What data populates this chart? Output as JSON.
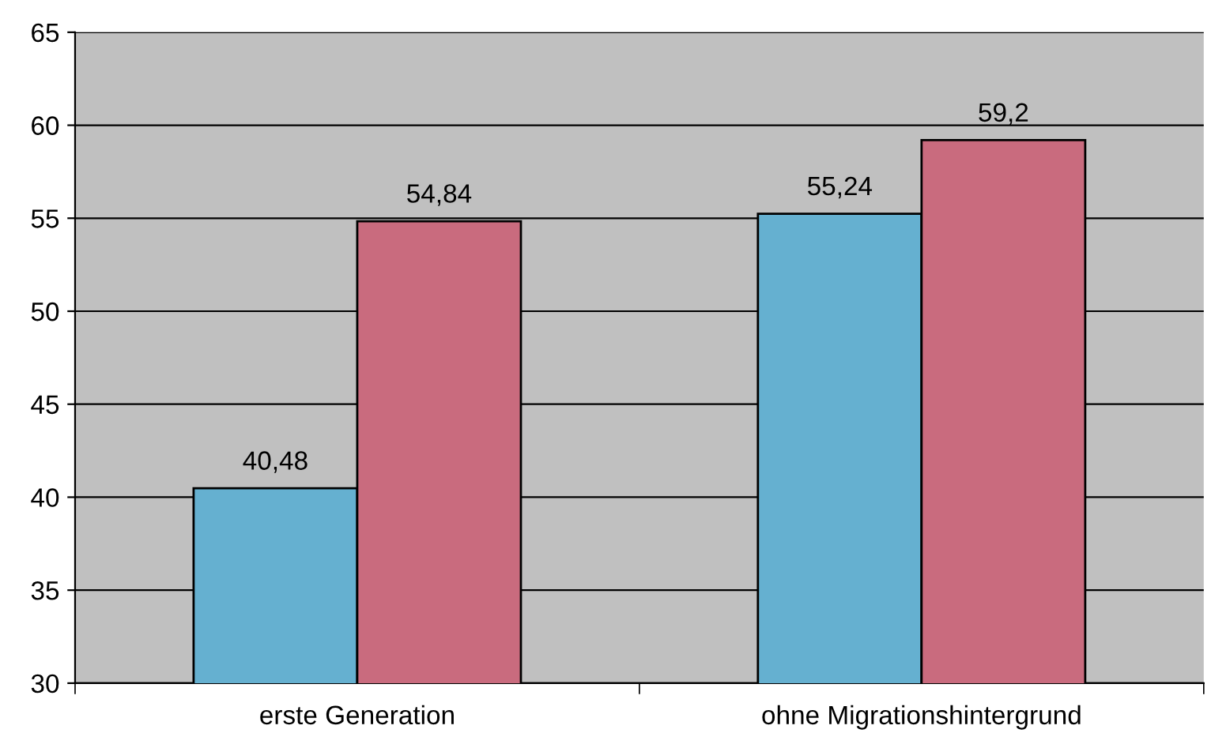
{
  "chart_data": {
    "type": "bar",
    "categories": [
      "erste Generation",
      "ohne Migrationshintergrund"
    ],
    "series": [
      {
        "color": "#65b0d0",
        "values": [
          40.48,
          55.24
        ],
        "value_labels": [
          "40,48",
          "55,24"
        ]
      },
      {
        "color": "#c96b7e",
        "values": [
          54.84,
          59.2
        ],
        "value_labels": [
          "54,84",
          "59,2"
        ]
      }
    ],
    "ylim": [
      30,
      65
    ],
    "yticks": [
      30,
      35,
      40,
      45,
      50,
      55,
      60,
      65
    ],
    "grid": "y",
    "legend": false
  }
}
